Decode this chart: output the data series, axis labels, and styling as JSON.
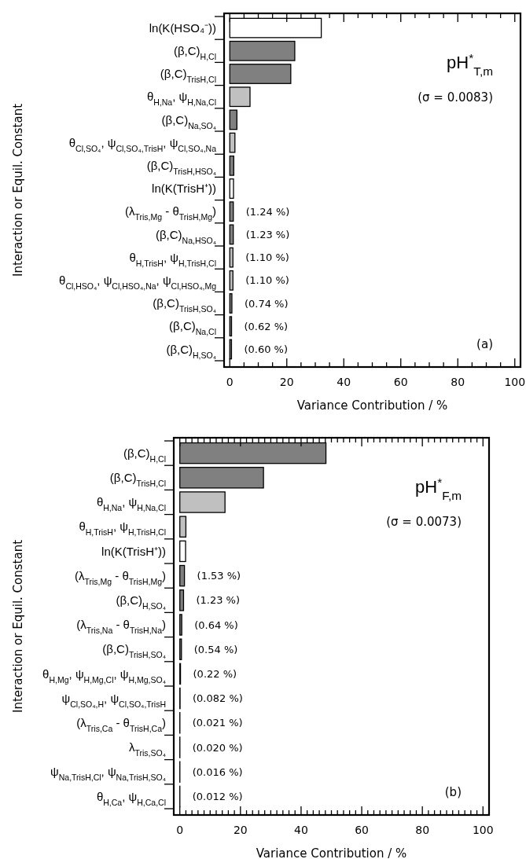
{
  "chart_data": [
    {
      "type": "bar",
      "orientation": "horizontal",
      "title": "pH$^{*}$$_{T,m}$",
      "xlabel": "Variance Contribution / %",
      "ylabel": "Interaction or Equil. Constant",
      "annotations": [
        "(σ = 0.0083)",
        "(a)"
      ],
      "categories": [
        "ln(K(HSO₄⁻))",
        "(β,C)$_{H,Cl}$",
        "(β,C)$_{TrisH,Cl}$",
        "θ$_{H,Na}$, ψ$_{H,Na,Cl}$",
        "(β,C)$_{Na,SO₄}$",
        "θ$_{Cl,SO₄}$, ψ$_{Cl,SO₄,TrisH}$, ψ$_{Cl,SO₄,Na}$",
        "(β,C)$_{TrisH,HSO₄}$",
        "ln(K(TrisH⁺))",
        "(λ$_{Tris,Mg}$ - θ$_{TrisH,Mg}$)",
        "(β,C)$_{Na,HSO₄}$",
        "θ$_{H,TrisH}$, ψ$_{H,TrisH,Cl}$",
        "θ$_{Cl,HSO₄}$, ψ$_{Cl,HSO₄,Na}$, ψ$_{Cl,HSO₄,Mg}$",
        "(β,C)$_{TrisH,SO₄}$",
        "(β,C)$_{Na,Cl}$",
        "(β,C)$_{H,SO₄}$"
      ],
      "values": [
        32.1,
        22.8,
        21.4,
        7.1,
        2.5,
        1.8,
        1.4,
        1.3,
        1.24,
        1.23,
        1.1,
        1.1,
        0.74,
        0.62,
        0.6
      ],
      "value_labels": [
        null,
        null,
        null,
        null,
        null,
        null,
        null,
        null,
        "(1.24 %)",
        "(1.23 %)",
        "(1.10 %)",
        "(1.10 %)",
        "(0.74 %)",
        "(0.62 %)",
        "(0.60 %)"
      ],
      "colors": [
        "#ffffff",
        "#808080",
        "#808080",
        "#c0c0c0",
        "#808080",
        "#c0c0c0",
        "#808080",
        "#ffffff",
        "#808080",
        "#808080",
        "#c0c0c0",
        "#c0c0c0",
        "#808080",
        "#808080",
        "#808080"
      ],
      "xlim": [
        -2,
        102
      ],
      "xticks": [
        0,
        {
          "value": 5,
          "label": null
        },
        {
          "value": 10,
          "label": null
        },
        {
          "value": 15,
          "label": null
        },
        20,
        {
          "value": 25,
          "label": null
        },
        {
          "value": 30,
          "label": null
        },
        {
          "value": 35,
          "label": null
        },
        40,
        {
          "value": 45,
          "label": null
        },
        {
          "value": 50,
          "label": null
        },
        {
          "value": 55,
          "label": null
        },
        60,
        {
          "value": 65,
          "label": null
        },
        {
          "value": 70,
          "label": null
        },
        {
          "value": 75,
          "label": null
        },
        80,
        {
          "value": 85,
          "label": null
        },
        {
          "value": 90,
          "label": null
        },
        {
          "value": 95,
          "label": null
        },
        100
      ]
    },
    {
      "type": "bar",
      "orientation": "horizontal",
      "title": "pH$^{*}$$_{F,m}$",
      "xlabel": "Variance Contribution / %",
      "ylabel": "Interaction or Equil. Constant",
      "annotations": [
        "(σ = 0.0073)",
        "(b)"
      ],
      "categories": [
        "(β,C)$_{H,Cl}$",
        "(β,C)$_{TrisH,Cl}$",
        "θ$_{H,Na}$, ψ$_{H,Na,Cl}$",
        "θ$_{H,TrisH}$, ψ$_{H,TrisH,Cl}$",
        "ln(K(TrisH⁺))",
        "(λ$_{Tris,Mg}$ - θ$_{TrisH,Mg}$)",
        "(β,C)$_{H,SO₄}$",
        "(λ$_{Tris,Na}$ - θ$_{TrisH,Na}$)",
        "(β,C)$_{TrisH,SO₄}$",
        "θ$_{H,Mg}$, ψ$_{H,Mg,Cl}$, ψ$_{H,Mg,SO₄}$",
        "ψ$_{Cl,SO₄,H}$, ψ$_{Cl,SO₄,TrisH}$",
        "(λ$_{Tris,Ca}$ - θ$_{TrisH,Ca}$)",
        "λ$_{Tris,SO₄}$",
        "ψ$_{Na,TrisH,Cl}$, ψ$_{Na,TrisH,SO₄}$",
        "θ$_{H,Ca}$, ψ$_{H,Ca,Cl}$"
      ],
      "values": [
        48.2,
        27.6,
        14.9,
        2.0,
        1.9,
        1.53,
        1.23,
        0.64,
        0.54,
        0.22,
        0.082,
        0.021,
        0.02,
        0.016,
        0.012
      ],
      "value_labels": [
        null,
        null,
        null,
        null,
        null,
        "(1.53 %)",
        "(1.23 %)",
        "(0.64 %)",
        "(0.54 %)",
        "(0.22 %)",
        "(0.082 %)",
        "(0.021 %)",
        "(0.020 %)",
        "(0.016 %)",
        "(0.012 %)"
      ],
      "colors": [
        "#808080",
        "#808080",
        "#c0c0c0",
        "#c0c0c0",
        "#ffffff",
        "#808080",
        "#808080",
        "#808080",
        "#808080",
        "#c0c0c0",
        "#c0c0c0",
        "#808080",
        "#808080",
        "#c0c0c0",
        "#c0c0c0"
      ],
      "xlim": [
        -2,
        102
      ],
      "xticks": [
        0,
        {
          "value": 2,
          "label": null
        },
        {
          "value": 4,
          "label": null
        },
        {
          "value": 6,
          "label": null
        },
        {
          "value": 8,
          "label": null
        },
        {
          "value": 10,
          "label": null
        },
        {
          "value": 12,
          "label": null
        },
        {
          "value": 14,
          "label": null
        },
        {
          "value": 16,
          "label": null
        },
        {
          "value": 18,
          "label": null
        },
        20,
        {
          "value": 22,
          "label": null
        },
        {
          "value": 24,
          "label": null
        },
        {
          "value": 26,
          "label": null
        },
        {
          "value": 28,
          "label": null
        },
        {
          "value": 30,
          "label": null
        },
        {
          "value": 32,
          "label": null
        },
        {
          "value": 34,
          "label": null
        },
        {
          "value": 36,
          "label": null
        },
        {
          "value": 38,
          "label": null
        },
        40,
        {
          "value": 42,
          "label": null
        },
        {
          "value": 44,
          "label": null
        },
        {
          "value": 46,
          "label": null
        },
        {
          "value": 48,
          "label": null
        },
        {
          "value": 50,
          "label": null
        },
        {
          "value": 52,
          "label": null
        },
        {
          "value": 54,
          "label": null
        },
        {
          "value": 56,
          "label": null
        },
        {
          "value": 58,
          "label": null
        },
        60,
        {
          "value": 62,
          "label": null
        },
        {
          "value": 64,
          "label": null
        },
        {
          "value": 66,
          "label": null
        },
        {
          "value": 68,
          "label": null
        },
        {
          "value": 70,
          "label": null
        },
        {
          "value": 72,
          "label": null
        },
        {
          "value": 74,
          "label": null
        },
        {
          "value": 76,
          "label": null
        },
        {
          "value": 78,
          "label": null
        },
        80,
        {
          "value": 82,
          "label": null
        },
        {
          "value": 84,
          "label": null
        },
        {
          "value": 86,
          "label": null
        },
        {
          "value": 88,
          "label": null
        },
        {
          "value": 90,
          "label": null
        },
        {
          "value": 92,
          "label": null
        },
        {
          "value": 94,
          "label": null
        },
        {
          "value": 96,
          "label": null
        },
        {
          "value": 98,
          "label": null
        },
        100
      ]
    }
  ]
}
